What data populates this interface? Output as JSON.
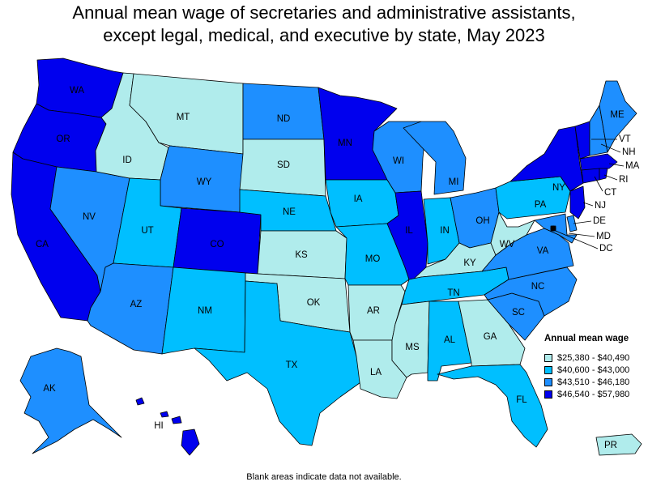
{
  "title_line1": "Annual mean wage of secretaries and administrative assistants,",
  "title_line2": "except legal, medical, and executive by state, May 2023",
  "legend": {
    "title": "Annual mean wage",
    "items": [
      {
        "label": "$25,380 - $40,490",
        "color": "#b0ecec"
      },
      {
        "label": "$40,600 - $43,000",
        "color": "#00bfff"
      },
      {
        "label": "$43,510 - $46,180",
        "color": "#1e8fff"
      },
      {
        "label": "$46,540 - $57,980",
        "color": "#0000ee"
      }
    ]
  },
  "footnote": "Blank areas indicate data not available.",
  "states": {
    "WA": 4,
    "OR": 4,
    "CA": 4,
    "NV": 3,
    "ID": 1,
    "MT": 1,
    "WY": 3,
    "UT": 2,
    "AZ": 3,
    "CO": 4,
    "NM": 2,
    "ND": 3,
    "SD": 1,
    "NE": 2,
    "KS": 1,
    "OK": 1,
    "TX": 2,
    "MN": 4,
    "IA": 2,
    "MO": 2,
    "AR": 1,
    "LA": 1,
    "WI": 3,
    "IL": 4,
    "MS": 1,
    "MI": 3,
    "IN": 2,
    "OH": 3,
    "KY": 1,
    "TN": 2,
    "AL": 2,
    "GA": 1,
    "FL": 2,
    "SC": 3,
    "NC": 3,
    "VA": 3,
    "WV": 1,
    "PA": 2,
    "NY": 4,
    "ME": 3,
    "VT": 4,
    "NH": 3,
    "MA": 4,
    "RI": 4,
    "CT": 4,
    "NJ": 4,
    "DE": 3,
    "MD": 3,
    "DC": 4,
    "AK": 3,
    "HI": 4,
    "PR": 1
  }
}
